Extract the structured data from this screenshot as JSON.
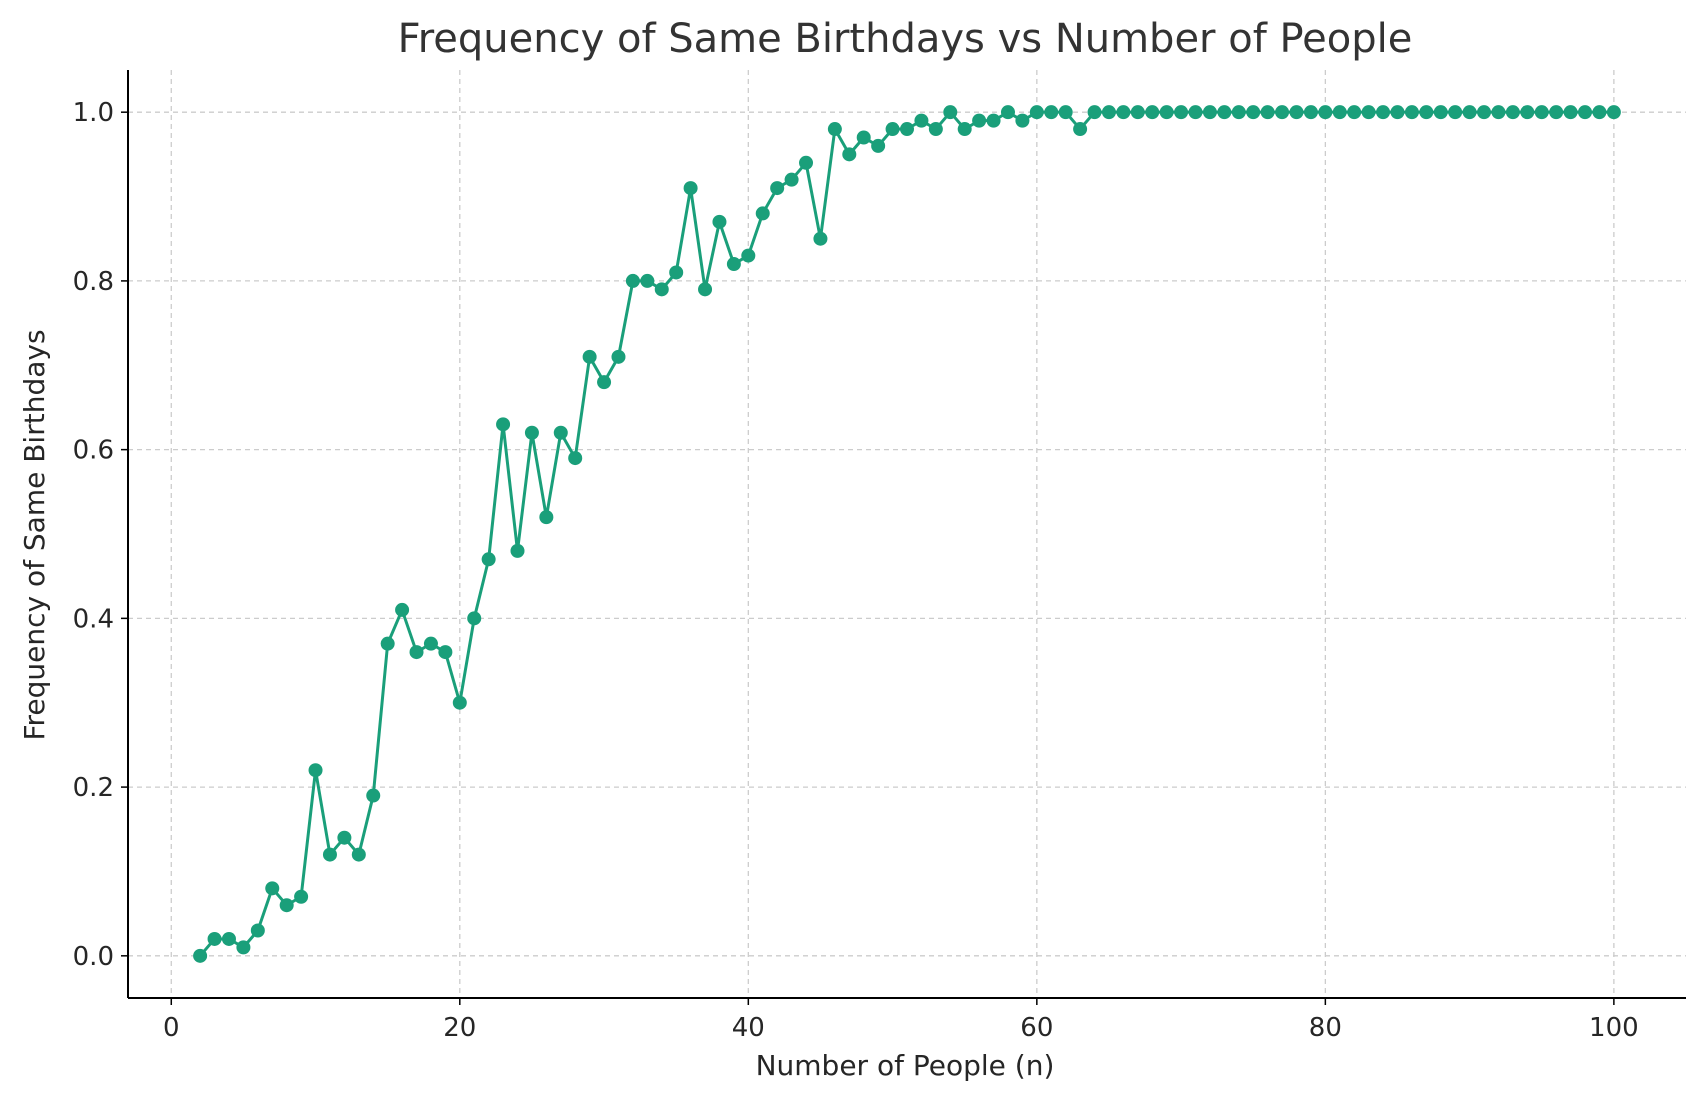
{
  "chart_data": {
    "type": "line",
    "title": "Frequency of Same Birthdays vs Number of People",
    "xlabel": "Number of People (n)",
    "ylabel": "Frequency of Same Birthdays",
    "xlim": [
      -3,
      105
    ],
    "ylim": [
      -0.05,
      1.05
    ],
    "x_ticks": [
      0,
      20,
      40,
      60,
      80,
      100
    ],
    "x_tick_labels": [
      "0",
      "20",
      "40",
      "60",
      "80",
      "100"
    ],
    "y_ticks": [
      0.0,
      0.2,
      0.4,
      0.6,
      0.8,
      1.0
    ],
    "y_tick_labels": [
      "0.0",
      "0.2",
      "0.4",
      "0.6",
      "0.8",
      "1.0"
    ],
    "grid": true,
    "grid_style": "dashed",
    "marker": "circle",
    "colors": {
      "series": "#1a9f7a",
      "grid": "#cccccc",
      "axis": "#000000",
      "text": "#262626",
      "title": "#333333"
    },
    "series": [
      {
        "x": [
          2,
          3,
          4,
          5,
          6,
          7,
          8,
          9,
          10,
          11,
          12,
          13,
          14,
          15,
          16,
          17,
          18,
          19,
          20,
          21,
          22,
          23,
          24,
          25,
          26,
          27,
          28,
          29,
          30,
          31,
          32,
          33,
          34,
          35,
          36,
          37,
          38,
          39,
          40,
          41,
          42,
          43,
          44,
          45,
          46,
          47,
          48,
          49,
          50,
          51,
          52,
          53,
          54,
          55,
          56,
          57,
          58,
          59,
          60,
          61,
          62,
          63,
          64,
          65,
          66,
          67,
          68,
          69,
          70,
          71,
          72,
          73,
          74,
          75,
          76,
          77,
          78,
          79,
          80,
          81,
          82,
          83,
          84,
          85,
          86,
          87,
          88,
          89,
          90,
          91,
          92,
          93,
          94,
          95,
          96,
          97,
          98,
          99,
          100
        ],
        "y": [
          0.0,
          0.02,
          0.02,
          0.01,
          0.03,
          0.08,
          0.06,
          0.07,
          0.22,
          0.12,
          0.14,
          0.12,
          0.19,
          0.37,
          0.41,
          0.36,
          0.37,
          0.36,
          0.3,
          0.4,
          0.47,
          0.63,
          0.48,
          0.62,
          0.52,
          0.62,
          0.59,
          0.71,
          0.68,
          0.71,
          0.8,
          0.8,
          0.79,
          0.81,
          0.91,
          0.79,
          0.87,
          0.82,
          0.83,
          0.88,
          0.91,
          0.92,
          0.94,
          0.85,
          0.98,
          0.95,
          0.97,
          0.96,
          0.98,
          0.98,
          0.99,
          0.98,
          1.0,
          0.98,
          0.99,
          0.99,
          1.0,
          0.99,
          1.0,
          1.0,
          1.0,
          0.98,
          1.0,
          1.0,
          1.0,
          1.0,
          1.0,
          1.0,
          1.0,
          1.0,
          1.0,
          1.0,
          1.0,
          1.0,
          1.0,
          1.0,
          1.0,
          1.0,
          1.0,
          1.0,
          1.0,
          1.0,
          1.0,
          1.0,
          1.0,
          1.0,
          1.0,
          1.0,
          1.0,
          1.0,
          1.0,
          1.0,
          1.0,
          1.0,
          1.0,
          1.0,
          1.0,
          1.0,
          1.0
        ]
      }
    ]
  }
}
